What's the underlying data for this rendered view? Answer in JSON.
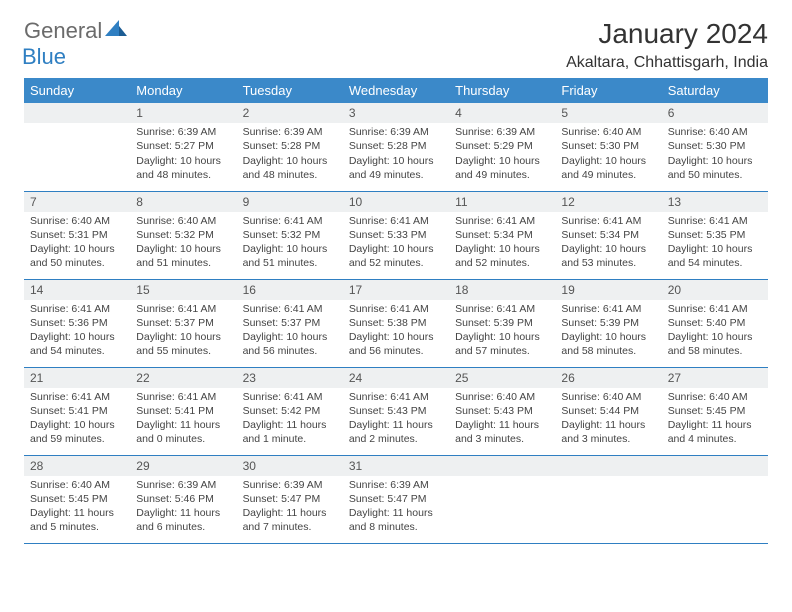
{
  "logo": {
    "general": "General",
    "blue": "Blue"
  },
  "title": "January 2024",
  "location": "Akaltara, Chhattisgarh, India",
  "colors": {
    "header_bg": "#3b89c9",
    "header_text": "#ffffff",
    "daynum_bg": "#eef0f1",
    "row_border": "#2f7fc2",
    "logo_gray": "#6b6b6b",
    "logo_blue": "#2f7fc2",
    "page_bg": "#ffffff",
    "body_text": "#444444"
  },
  "weekdays": [
    "Sunday",
    "Monday",
    "Tuesday",
    "Wednesday",
    "Thursday",
    "Friday",
    "Saturday"
  ],
  "weeks": [
    [
      {
        "num": "",
        "sunrise": "",
        "sunset": "",
        "daylight": ""
      },
      {
        "num": "1",
        "sunrise": "Sunrise: 6:39 AM",
        "sunset": "Sunset: 5:27 PM",
        "daylight": "Daylight: 10 hours and 48 minutes."
      },
      {
        "num": "2",
        "sunrise": "Sunrise: 6:39 AM",
        "sunset": "Sunset: 5:28 PM",
        "daylight": "Daylight: 10 hours and 48 minutes."
      },
      {
        "num": "3",
        "sunrise": "Sunrise: 6:39 AM",
        "sunset": "Sunset: 5:28 PM",
        "daylight": "Daylight: 10 hours and 49 minutes."
      },
      {
        "num": "4",
        "sunrise": "Sunrise: 6:39 AM",
        "sunset": "Sunset: 5:29 PM",
        "daylight": "Daylight: 10 hours and 49 minutes."
      },
      {
        "num": "5",
        "sunrise": "Sunrise: 6:40 AM",
        "sunset": "Sunset: 5:30 PM",
        "daylight": "Daylight: 10 hours and 49 minutes."
      },
      {
        "num": "6",
        "sunrise": "Sunrise: 6:40 AM",
        "sunset": "Sunset: 5:30 PM",
        "daylight": "Daylight: 10 hours and 50 minutes."
      }
    ],
    [
      {
        "num": "7",
        "sunrise": "Sunrise: 6:40 AM",
        "sunset": "Sunset: 5:31 PM",
        "daylight": "Daylight: 10 hours and 50 minutes."
      },
      {
        "num": "8",
        "sunrise": "Sunrise: 6:40 AM",
        "sunset": "Sunset: 5:32 PM",
        "daylight": "Daylight: 10 hours and 51 minutes."
      },
      {
        "num": "9",
        "sunrise": "Sunrise: 6:41 AM",
        "sunset": "Sunset: 5:32 PM",
        "daylight": "Daylight: 10 hours and 51 minutes."
      },
      {
        "num": "10",
        "sunrise": "Sunrise: 6:41 AM",
        "sunset": "Sunset: 5:33 PM",
        "daylight": "Daylight: 10 hours and 52 minutes."
      },
      {
        "num": "11",
        "sunrise": "Sunrise: 6:41 AM",
        "sunset": "Sunset: 5:34 PM",
        "daylight": "Daylight: 10 hours and 52 minutes."
      },
      {
        "num": "12",
        "sunrise": "Sunrise: 6:41 AM",
        "sunset": "Sunset: 5:34 PM",
        "daylight": "Daylight: 10 hours and 53 minutes."
      },
      {
        "num": "13",
        "sunrise": "Sunrise: 6:41 AM",
        "sunset": "Sunset: 5:35 PM",
        "daylight": "Daylight: 10 hours and 54 minutes."
      }
    ],
    [
      {
        "num": "14",
        "sunrise": "Sunrise: 6:41 AM",
        "sunset": "Sunset: 5:36 PM",
        "daylight": "Daylight: 10 hours and 54 minutes."
      },
      {
        "num": "15",
        "sunrise": "Sunrise: 6:41 AM",
        "sunset": "Sunset: 5:37 PM",
        "daylight": "Daylight: 10 hours and 55 minutes."
      },
      {
        "num": "16",
        "sunrise": "Sunrise: 6:41 AM",
        "sunset": "Sunset: 5:37 PM",
        "daylight": "Daylight: 10 hours and 56 minutes."
      },
      {
        "num": "17",
        "sunrise": "Sunrise: 6:41 AM",
        "sunset": "Sunset: 5:38 PM",
        "daylight": "Daylight: 10 hours and 56 minutes."
      },
      {
        "num": "18",
        "sunrise": "Sunrise: 6:41 AM",
        "sunset": "Sunset: 5:39 PM",
        "daylight": "Daylight: 10 hours and 57 minutes."
      },
      {
        "num": "19",
        "sunrise": "Sunrise: 6:41 AM",
        "sunset": "Sunset: 5:39 PM",
        "daylight": "Daylight: 10 hours and 58 minutes."
      },
      {
        "num": "20",
        "sunrise": "Sunrise: 6:41 AM",
        "sunset": "Sunset: 5:40 PM",
        "daylight": "Daylight: 10 hours and 58 minutes."
      }
    ],
    [
      {
        "num": "21",
        "sunrise": "Sunrise: 6:41 AM",
        "sunset": "Sunset: 5:41 PM",
        "daylight": "Daylight: 10 hours and 59 minutes."
      },
      {
        "num": "22",
        "sunrise": "Sunrise: 6:41 AM",
        "sunset": "Sunset: 5:41 PM",
        "daylight": "Daylight: 11 hours and 0 minutes."
      },
      {
        "num": "23",
        "sunrise": "Sunrise: 6:41 AM",
        "sunset": "Sunset: 5:42 PM",
        "daylight": "Daylight: 11 hours and 1 minute."
      },
      {
        "num": "24",
        "sunrise": "Sunrise: 6:41 AM",
        "sunset": "Sunset: 5:43 PM",
        "daylight": "Daylight: 11 hours and 2 minutes."
      },
      {
        "num": "25",
        "sunrise": "Sunrise: 6:40 AM",
        "sunset": "Sunset: 5:43 PM",
        "daylight": "Daylight: 11 hours and 3 minutes."
      },
      {
        "num": "26",
        "sunrise": "Sunrise: 6:40 AM",
        "sunset": "Sunset: 5:44 PM",
        "daylight": "Daylight: 11 hours and 3 minutes."
      },
      {
        "num": "27",
        "sunrise": "Sunrise: 6:40 AM",
        "sunset": "Sunset: 5:45 PM",
        "daylight": "Daylight: 11 hours and 4 minutes."
      }
    ],
    [
      {
        "num": "28",
        "sunrise": "Sunrise: 6:40 AM",
        "sunset": "Sunset: 5:45 PM",
        "daylight": "Daylight: 11 hours and 5 minutes."
      },
      {
        "num": "29",
        "sunrise": "Sunrise: 6:39 AM",
        "sunset": "Sunset: 5:46 PM",
        "daylight": "Daylight: 11 hours and 6 minutes."
      },
      {
        "num": "30",
        "sunrise": "Sunrise: 6:39 AM",
        "sunset": "Sunset: 5:47 PM",
        "daylight": "Daylight: 11 hours and 7 minutes."
      },
      {
        "num": "31",
        "sunrise": "Sunrise: 6:39 AM",
        "sunset": "Sunset: 5:47 PM",
        "daylight": "Daylight: 11 hours and 8 minutes."
      },
      {
        "num": "",
        "sunrise": "",
        "sunset": "",
        "daylight": ""
      },
      {
        "num": "",
        "sunrise": "",
        "sunset": "",
        "daylight": ""
      },
      {
        "num": "",
        "sunrise": "",
        "sunset": "",
        "daylight": ""
      }
    ]
  ]
}
